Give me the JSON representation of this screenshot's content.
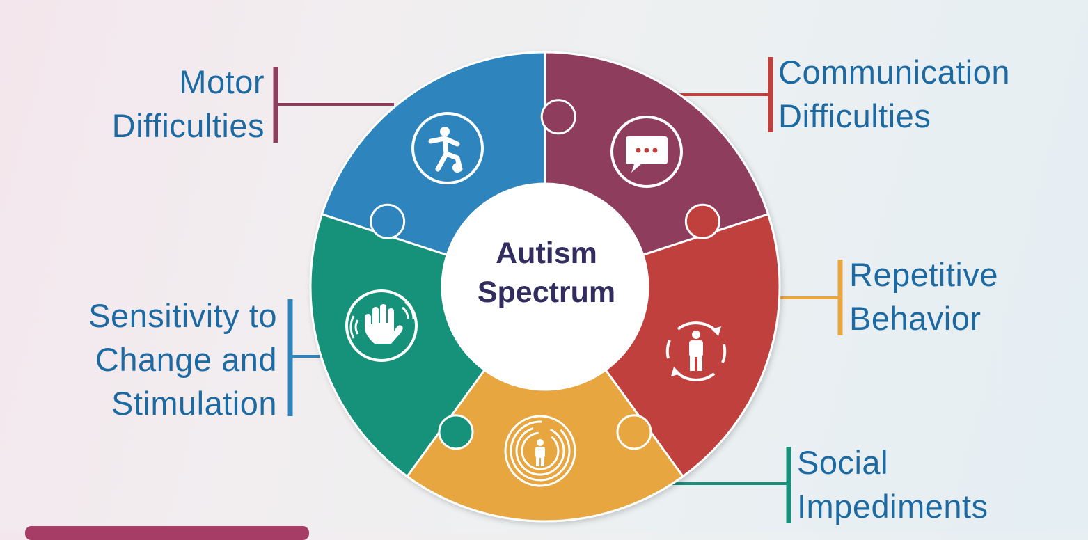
{
  "center": {
    "line1": "Autism",
    "line2": "Spectrum"
  },
  "segments": [
    {
      "id": "motor",
      "line1": "Motor",
      "line2": "Difficulties",
      "color": "#8f3d5c",
      "icon": "soccer-player-icon"
    },
    {
      "id": "communication",
      "line1": "Communication",
      "line2": "Difficulties",
      "color": "#c0403e",
      "icon": "chat-bubble-icon"
    },
    {
      "id": "repetitive",
      "line1": "Repetitive",
      "line2": "Behavior",
      "color": "#e7a640",
      "icon": "person-cycle-icon"
    },
    {
      "id": "social",
      "line1": "Social",
      "line2": "Impediments",
      "color": "#17917a",
      "icon": "person-maze-icon"
    },
    {
      "id": "sensitivity",
      "line1": "Sensitivity to",
      "line2": "Change and",
      "line3": "Stimulation",
      "color": "#2e84bd",
      "icon": "waving-hand-icon"
    }
  ],
  "colors": {
    "label_text": "#1d6aa3",
    "center_text": "#322d5e",
    "bottom_tab": "#a53d66"
  }
}
